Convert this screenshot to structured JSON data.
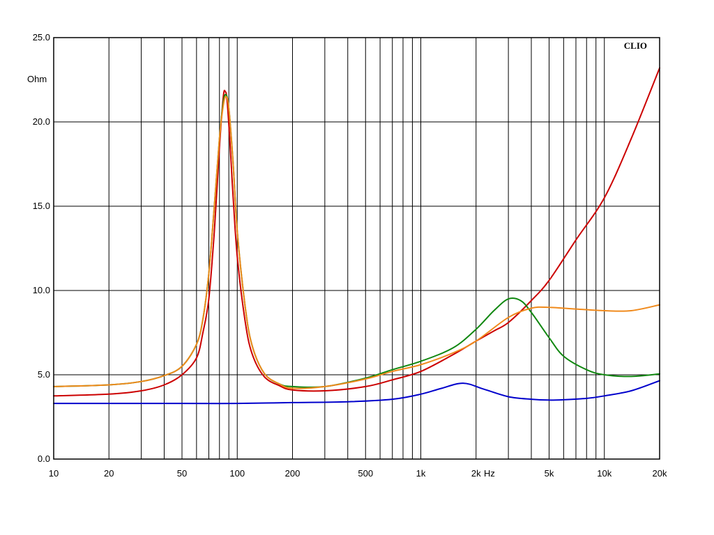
{
  "chart_data": {
    "type": "line",
    "brand": "CLIO",
    "ylabel": "Ohm",
    "xunit": "Hz",
    "xscale": "log",
    "xlim": [
      10,
      20000
    ],
    "ylim": [
      0,
      25
    ],
    "grid": true,
    "legend": "none",
    "x_ticks": [
      {
        "value": 10,
        "label": "10"
      },
      {
        "value": 20,
        "label": "20"
      },
      {
        "value": 50,
        "label": "50"
      },
      {
        "value": 100,
        "label": "100"
      },
      {
        "value": 200,
        "label": "200"
      },
      {
        "value": 500,
        "label": "500"
      },
      {
        "value": 1000,
        "label": "1k"
      },
      {
        "value": 2000,
        "label": "2k"
      },
      {
        "value": 5000,
        "label": "5k"
      },
      {
        "value": 10000,
        "label": "10k"
      },
      {
        "value": 20000,
        "label": "20k"
      }
    ],
    "y_ticks": [
      {
        "value": 0,
        "label": "0.0"
      },
      {
        "value": 5,
        "label": "5.0"
      },
      {
        "value": 10,
        "label": "10.0"
      },
      {
        "value": 15,
        "label": "15.0"
      },
      {
        "value": 20,
        "label": "20.0"
      },
      {
        "value": 25,
        "label": "25.0"
      }
    ],
    "series": [
      {
        "color": "#0000cc",
        "x": [
          10,
          20,
          50,
          100,
          200,
          400,
          700,
          1000,
          1300,
          1700,
          2200,
          3000,
          4000,
          5000,
          6000,
          8000,
          10000,
          14000,
          20000
        ],
        "y": [
          3.3,
          3.3,
          3.3,
          3.3,
          3.35,
          3.4,
          3.55,
          3.85,
          4.2,
          4.5,
          4.15,
          3.7,
          3.55,
          3.5,
          3.52,
          3.6,
          3.75,
          4.05,
          4.65
        ]
      },
      {
        "color": "#cc0000",
        "x": [
          10,
          20,
          30,
          40,
          50,
          60,
          65,
          70,
          75,
          80,
          84,
          86,
          88,
          91,
          95,
          100,
          110,
          120,
          140,
          170,
          200,
          300,
          500,
          700,
          1000,
          1500,
          2000,
          2500,
          3000,
          4000,
          5000,
          7000,
          10000,
          14000,
          20000
        ],
        "y": [
          3.75,
          3.85,
          4.05,
          4.4,
          5.0,
          6.0,
          7.5,
          9.5,
          13.5,
          18.5,
          21.5,
          21.8,
          21.3,
          19.0,
          15.5,
          12.0,
          8.3,
          6.3,
          4.9,
          4.35,
          4.1,
          4.05,
          4.3,
          4.7,
          5.2,
          6.2,
          7.0,
          7.6,
          8.1,
          9.4,
          10.6,
          13.0,
          15.5,
          19.0,
          23.2
        ]
      },
      {
        "color": "#118811",
        "x": [
          10,
          20,
          30,
          40,
          50,
          60,
          65,
          70,
          75,
          80,
          84,
          87,
          90,
          95,
          100,
          110,
          120,
          140,
          170,
          200,
          300,
          500,
          700,
          1000,
          1500,
          2000,
          2500,
          3000,
          3500,
          4000,
          5000,
          6000,
          8000,
          10000,
          14000,
          20000
        ],
        "y": [
          4.3,
          4.4,
          4.6,
          4.95,
          5.5,
          6.8,
          8.3,
          11.0,
          15.0,
          19.0,
          21.2,
          21.6,
          20.8,
          17.5,
          13.5,
          9.2,
          6.8,
          5.1,
          4.45,
          4.3,
          4.3,
          4.8,
          5.3,
          5.8,
          6.6,
          7.7,
          8.8,
          9.5,
          9.4,
          8.7,
          7.2,
          6.1,
          5.3,
          5.0,
          4.9,
          5.05
        ]
      },
      {
        "color": "#f08a1c",
        "x": [
          10,
          20,
          30,
          40,
          50,
          60,
          65,
          70,
          75,
          80,
          84,
          87,
          90,
          95,
          100,
          110,
          120,
          140,
          170,
          200,
          300,
          500,
          700,
          1000,
          1500,
          2000,
          3000,
          4000,
          5000,
          7000,
          10000,
          14000,
          20000
        ],
        "y": [
          4.3,
          4.4,
          4.6,
          4.95,
          5.5,
          6.8,
          8.3,
          11.0,
          15.0,
          19.0,
          21.0,
          21.5,
          20.8,
          17.5,
          13.5,
          9.2,
          6.8,
          5.1,
          4.45,
          4.2,
          4.3,
          4.75,
          5.2,
          5.6,
          6.3,
          7.0,
          8.4,
          8.95,
          9.0,
          8.9,
          8.8,
          8.8,
          9.15
        ]
      }
    ]
  }
}
